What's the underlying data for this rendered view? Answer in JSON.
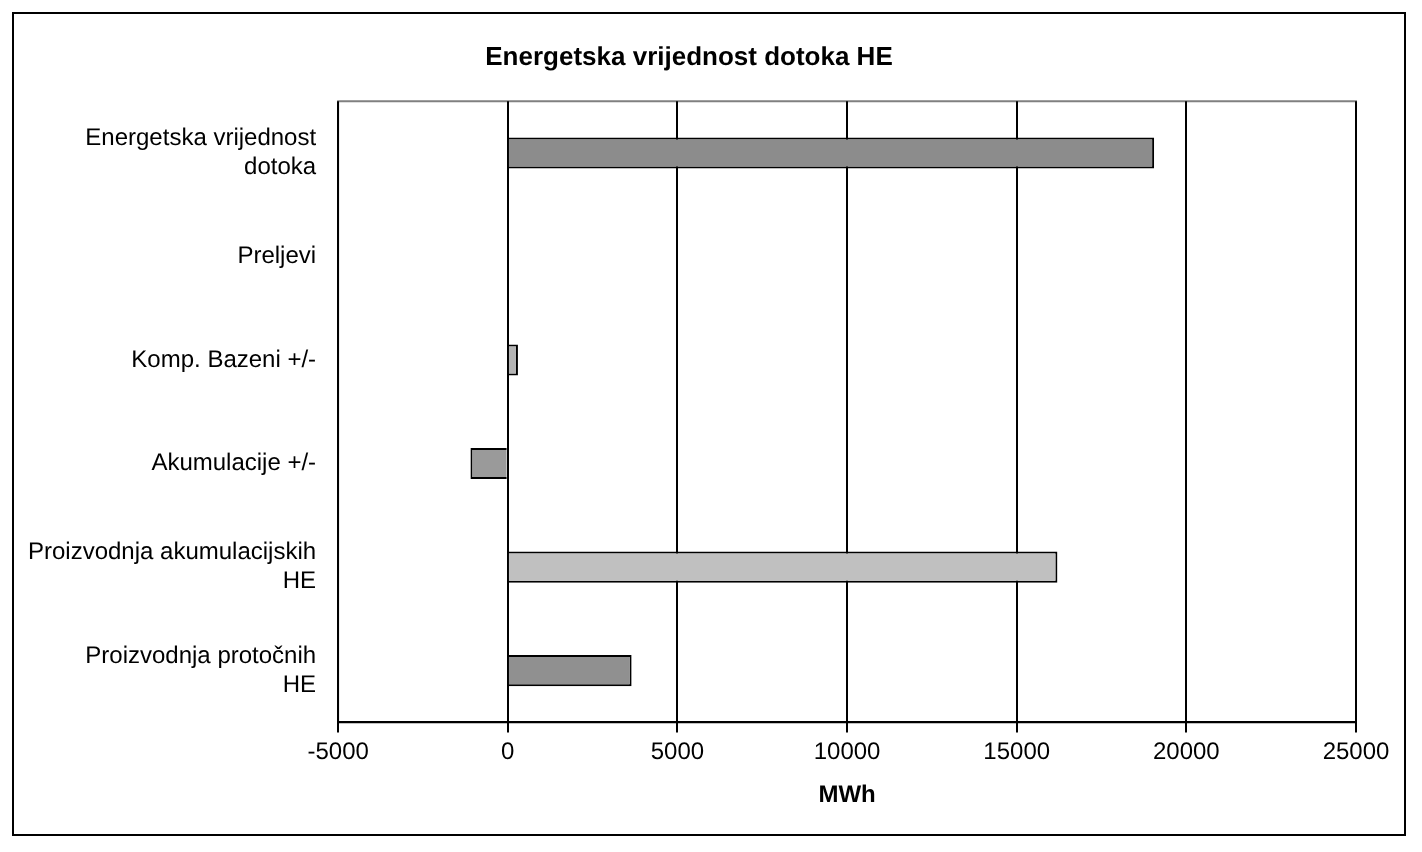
{
  "chart_data": {
    "type": "bar",
    "orientation": "horizontal",
    "title": "Energetska vrijednost dotoka HE",
    "xlabel": "MWh",
    "categories": [
      "Energetska vrijednost dotoka",
      "Preljevi",
      "Komp. Bazeni +/-",
      "Akumulacije +/-",
      "Proizvodnja akumulacijskih HE",
      "Proizvodnja protočnih HE"
    ],
    "values": [
      19050,
      0,
      300,
      -1100,
      16200,
      3650
    ],
    "colors": [
      "#8c8c8c",
      "#a0a0a0",
      "#b4b4b4",
      "#9a9a9a",
      "#c0c0c0",
      "#909090"
    ],
    "xlim": [
      -5000,
      25000
    ],
    "xticks": [
      -5000,
      0,
      5000,
      10000,
      15000,
      20000,
      25000
    ],
    "grid": "x",
    "legend": false
  }
}
